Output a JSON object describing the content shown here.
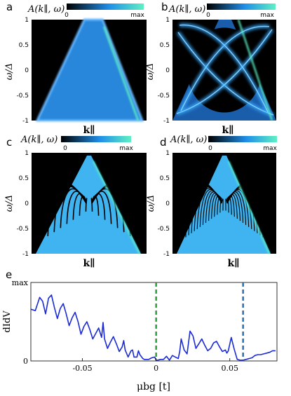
{
  "panels": [
    {
      "letter": "a",
      "title": "A(k∥, ω)",
      "cbar_min": "0",
      "cbar_max": "max",
      "ylabel": "ω/Δ",
      "xlabel": "k∥",
      "yticks": [
        "1",
        "0.5",
        "0",
        "-0.5",
        "-1"
      ],
      "pattern": "wedge"
    },
    {
      "letter": "b",
      "title": "A(k∥, ω)",
      "cbar_min": "0",
      "cbar_max": "max",
      "ylabel": "ω/Δ",
      "xlabel": "k∥",
      "yticks": [
        "1",
        "0.5",
        "0",
        "-0.5",
        "-1"
      ],
      "pattern": "loops"
    },
    {
      "letter": "c",
      "title": "A(k∥, ω)",
      "cbar_min": "0",
      "cbar_max": "max",
      "ylabel": "ω/Δ",
      "xlabel": "k∥",
      "yticks": [
        "1",
        "0.5",
        "0",
        "-0.5",
        "-1"
      ],
      "pattern": "fringes-sparse"
    },
    {
      "letter": "d",
      "title": "A(k∥, ω)",
      "cbar_min": "0",
      "cbar_max": "max",
      "ylabel": "ω/Δ",
      "xlabel": "k∥",
      "yticks": [
        "1",
        "0.5",
        "0",
        "-0.5",
        "-1"
      ],
      "pattern": "fringes-dense"
    }
  ],
  "colors": {
    "map_low": "#000000",
    "map_mid": "#1f8ee8",
    "map_high": "#5ff0c4",
    "trace": "#1a2ad6",
    "vline_green": "#2e9e3a",
    "vline_blue": "#2a6fb5"
  },
  "chart_data": {
    "type": "line",
    "panel_letter": "e",
    "xlabel": "μbg [t]",
    "ylabel": "dIdV",
    "xlim": [
      -0.085,
      0.082
    ],
    "ylim": [
      0,
      1
    ],
    "xticks": [
      "-0.05",
      "0",
      "0.05"
    ],
    "xtick_values": [
      -0.05,
      0,
      0.05
    ],
    "yticks": [
      "0",
      "max"
    ],
    "ytick_values": [
      0,
      1
    ],
    "vlines": [
      {
        "x": 0.0,
        "color": "#2e9e3a",
        "style": "dashed"
      },
      {
        "x": 0.059,
        "color": "#2a6fb5",
        "style": "dashed"
      }
    ],
    "series": [
      {
        "x": [
          -0.085,
          -0.082,
          -0.079,
          -0.077,
          -0.075,
          -0.073,
          -0.071,
          -0.069,
          -0.067,
          -0.065,
          -0.063,
          -0.061,
          -0.059,
          -0.057,
          -0.055,
          -0.053,
          -0.051,
          -0.049,
          -0.047,
          -0.045,
          -0.043,
          -0.041,
          -0.039,
          -0.037,
          -0.036,
          -0.035,
          -0.033,
          -0.031,
          -0.029,
          -0.027,
          -0.025,
          -0.023,
          -0.022,
          -0.021,
          -0.019,
          -0.017,
          -0.016,
          -0.015,
          -0.013,
          -0.012,
          -0.011,
          -0.009,
          -0.008,
          -0.007,
          -0.005,
          -0.003,
          -0.001,
          0.0,
          0.001,
          0.003,
          0.005,
          0.007,
          0.009,
          0.011,
          0.013,
          0.015,
          0.016,
          0.017,
          0.019,
          0.021,
          0.023,
          0.025,
          0.027,
          0.029,
          0.031,
          0.033,
          0.035,
          0.037,
          0.039,
          0.041,
          0.043,
          0.045,
          0.047,
          0.048,
          0.049,
          0.051,
          0.053,
          0.055,
          0.057,
          0.059,
          0.061,
          0.063,
          0.065,
          0.067,
          0.069,
          0.071,
          0.073,
          0.075,
          0.077,
          0.079,
          0.081
        ],
        "y": [
          0.66,
          0.64,
          0.81,
          0.76,
          0.6,
          0.8,
          0.84,
          0.68,
          0.54,
          0.67,
          0.73,
          0.6,
          0.45,
          0.55,
          0.62,
          0.5,
          0.34,
          0.44,
          0.5,
          0.4,
          0.28,
          0.35,
          0.42,
          0.3,
          0.49,
          0.28,
          0.16,
          0.24,
          0.31,
          0.22,
          0.12,
          0.18,
          0.26,
          0.14,
          0.05,
          0.13,
          0.14,
          0.05,
          0.05,
          0.13,
          0.08,
          0.03,
          0.02,
          0.02,
          0.02,
          0.04,
          0.05,
          0.01,
          0.01,
          0.02,
          0.02,
          0.06,
          0.01,
          0.07,
          0.05,
          0.03,
          0.12,
          0.28,
          0.14,
          0.09,
          0.38,
          0.32,
          0.16,
          0.22,
          0.28,
          0.2,
          0.13,
          0.16,
          0.23,
          0.25,
          0.18,
          0.12,
          0.14,
          0.1,
          0.13,
          0.3,
          0.15,
          0.02,
          0.01,
          0.01,
          0.02,
          0.03,
          0.04,
          0.07,
          0.08,
          0.08,
          0.09,
          0.1,
          0.11,
          0.13,
          0.13
        ]
      }
    ]
  }
}
